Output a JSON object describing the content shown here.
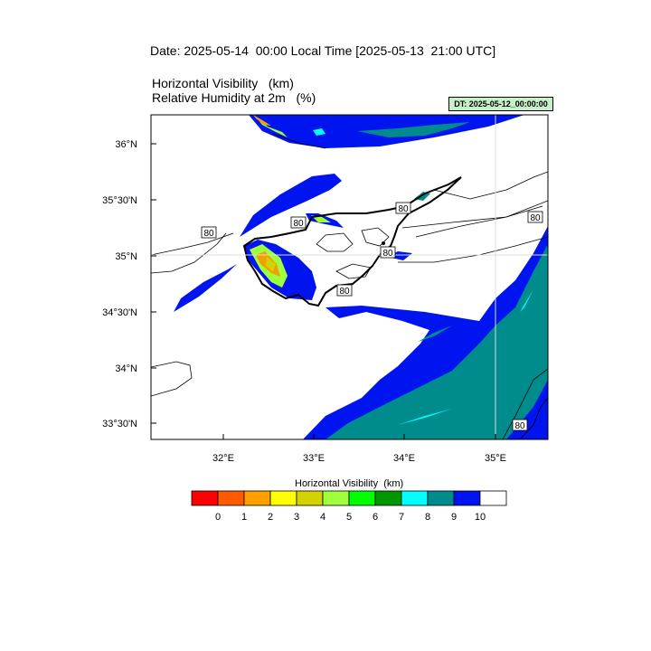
{
  "header": {
    "date_line": "Date: 2025-05-14  00:00 Local Time [2025-05-13  21:00 UTC]",
    "title_line1": "Horizontal Visibility   (km)",
    "title_line2": "Relative Humidity at 2m   (%)",
    "dt_badge": "DT: 2025-05-12_00:00:00"
  },
  "map": {
    "lon_ticks": [
      "32°E",
      "33°E",
      "34°E",
      "35°E"
    ],
    "lat_ticks": [
      "36°N",
      "35°30'N",
      "35°N",
      "34°30'N",
      "34°N",
      "33°30'N"
    ],
    "contour_labels": [
      "80",
      "80",
      "80",
      "80",
      "80",
      "80",
      "80"
    ],
    "colors": {
      "vis_9_10": "#0014f0",
      "vis_8_9": "#008c8c",
      "vis_7_8": "#00ffff",
      "vis_low": "#f0a000",
      "vis_mid": "#d2d200"
    }
  },
  "colorbar": {
    "title": "Horizontal Visibility  (km)",
    "labels": [
      "0",
      "1",
      "2",
      "3",
      "4",
      "5",
      "6",
      "7",
      "8",
      "9",
      "10"
    ],
    "colors": [
      "#ff0000",
      "#ff5a00",
      "#ffa000",
      "#ffff00",
      "#d2d200",
      "#a0ff3c",
      "#00ff00",
      "#009600",
      "#00ffff",
      "#008c8c",
      "#0014f0",
      "#ffffff"
    ]
  }
}
